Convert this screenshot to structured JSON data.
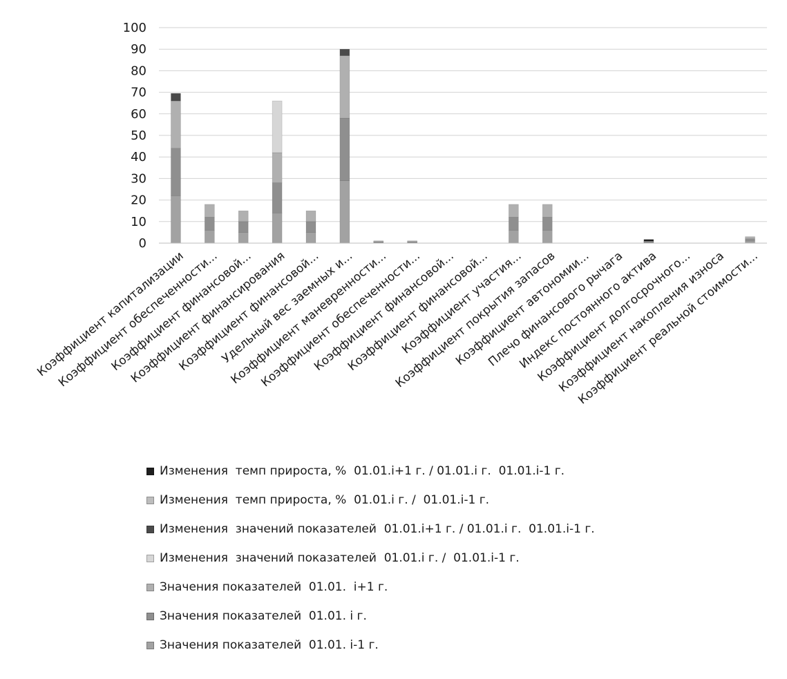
{
  "chart_data": {
    "type": "bar",
    "stacked": true,
    "title": "",
    "xlabel": "",
    "ylabel": "",
    "ylim": [
      0,
      100
    ],
    "yticks": [
      0,
      10,
      20,
      30,
      40,
      50,
      60,
      70,
      80,
      90,
      100
    ],
    "grid": true,
    "legend_position": "bottom",
    "categories": [
      "Коэффициент капитализации",
      "Коэффициент обеспеченности...",
      "Коэффициент финансовой...",
      "Коэффициент финансирования",
      "Коэффициент финансовой...",
      "Удельный вес заемных и...",
      "Коэффициент маневренности...",
      "Коэффициент обеспеченности...",
      "Коэффициент финансовой...",
      "Коэффициент финансовой...",
      "Коэффициент участия...",
      "Коэффициент покрытия запасов",
      "Коэффициент автономии...",
      "Плечо финансового рычага",
      "Индекс постоянного актива",
      "Коэффициент долгосрочного...",
      "Коэффициент накопления износа",
      "Коэффициент реальной стоимости..."
    ],
    "series": [
      {
        "name": "Значения показателей  01.01. i-1 г.",
        "color": "#a2a2a2",
        "values": [
          22,
          6,
          5,
          14,
          5,
          29,
          0.3,
          0.3,
          0,
          0,
          6,
          6,
          0,
          0,
          0.3,
          0,
          0,
          1
        ]
      },
      {
        "name": "Значения показателей  01.01. i г.",
        "color": "#8f8f8f",
        "values": [
          22,
          6,
          5,
          14,
          5,
          29,
          0.3,
          0.3,
          0,
          0,
          6,
          6,
          0,
          0,
          0.3,
          0,
          0,
          1
        ]
      },
      {
        "name": "Значения показателей  01.01.  i+1 г.",
        "color": "#b0b0b0",
        "values": [
          22,
          6,
          5,
          14,
          5,
          29,
          0.3,
          0.3,
          0,
          0,
          6,
          6,
          0,
          0,
          0.3,
          0,
          0,
          1
        ]
      },
      {
        "name": "Изменения  значений показателей  01.01.i г. /  01.01.i-1 г.",
        "color": "#d6d6d6",
        "values": [
          0,
          0,
          0,
          24,
          0,
          0,
          0,
          0,
          0,
          0,
          0,
          0,
          0,
          0,
          0,
          0,
          0,
          0
        ]
      },
      {
        "name": "Изменения  значений показателей  01.01.i+1 г. / 01.01.i г.  01.01.i-1 г.",
        "color": "#4a4a4a",
        "values": [
          3.5,
          0,
          0,
          0,
          0,
          3,
          0,
          0,
          0,
          0,
          0,
          0,
          0,
          0,
          0,
          0,
          0,
          0
        ]
      },
      {
        "name": "Изменения  темп прироста, %  01.01.i г. /  01.01.i-1 г.",
        "color": "#bdbdbd",
        "values": [
          0,
          0,
          0,
          0,
          0,
          0,
          0,
          0,
          0,
          0,
          0,
          0,
          0,
          0,
          0,
          0,
          0,
          0
        ]
      },
      {
        "name": "Изменения  темп прироста, %  01.01.i+1 г. / 01.01.i г.  01.01.i-1 г.",
        "color": "#1f1f1f",
        "values": [
          0,
          0,
          0,
          0,
          0,
          0,
          0,
          0,
          0,
          0,
          0,
          0,
          0,
          0,
          0.8,
          0,
          0,
          0
        ]
      }
    ]
  },
  "legend_order": [
    6,
    5,
    4,
    3,
    2,
    1,
    0
  ]
}
